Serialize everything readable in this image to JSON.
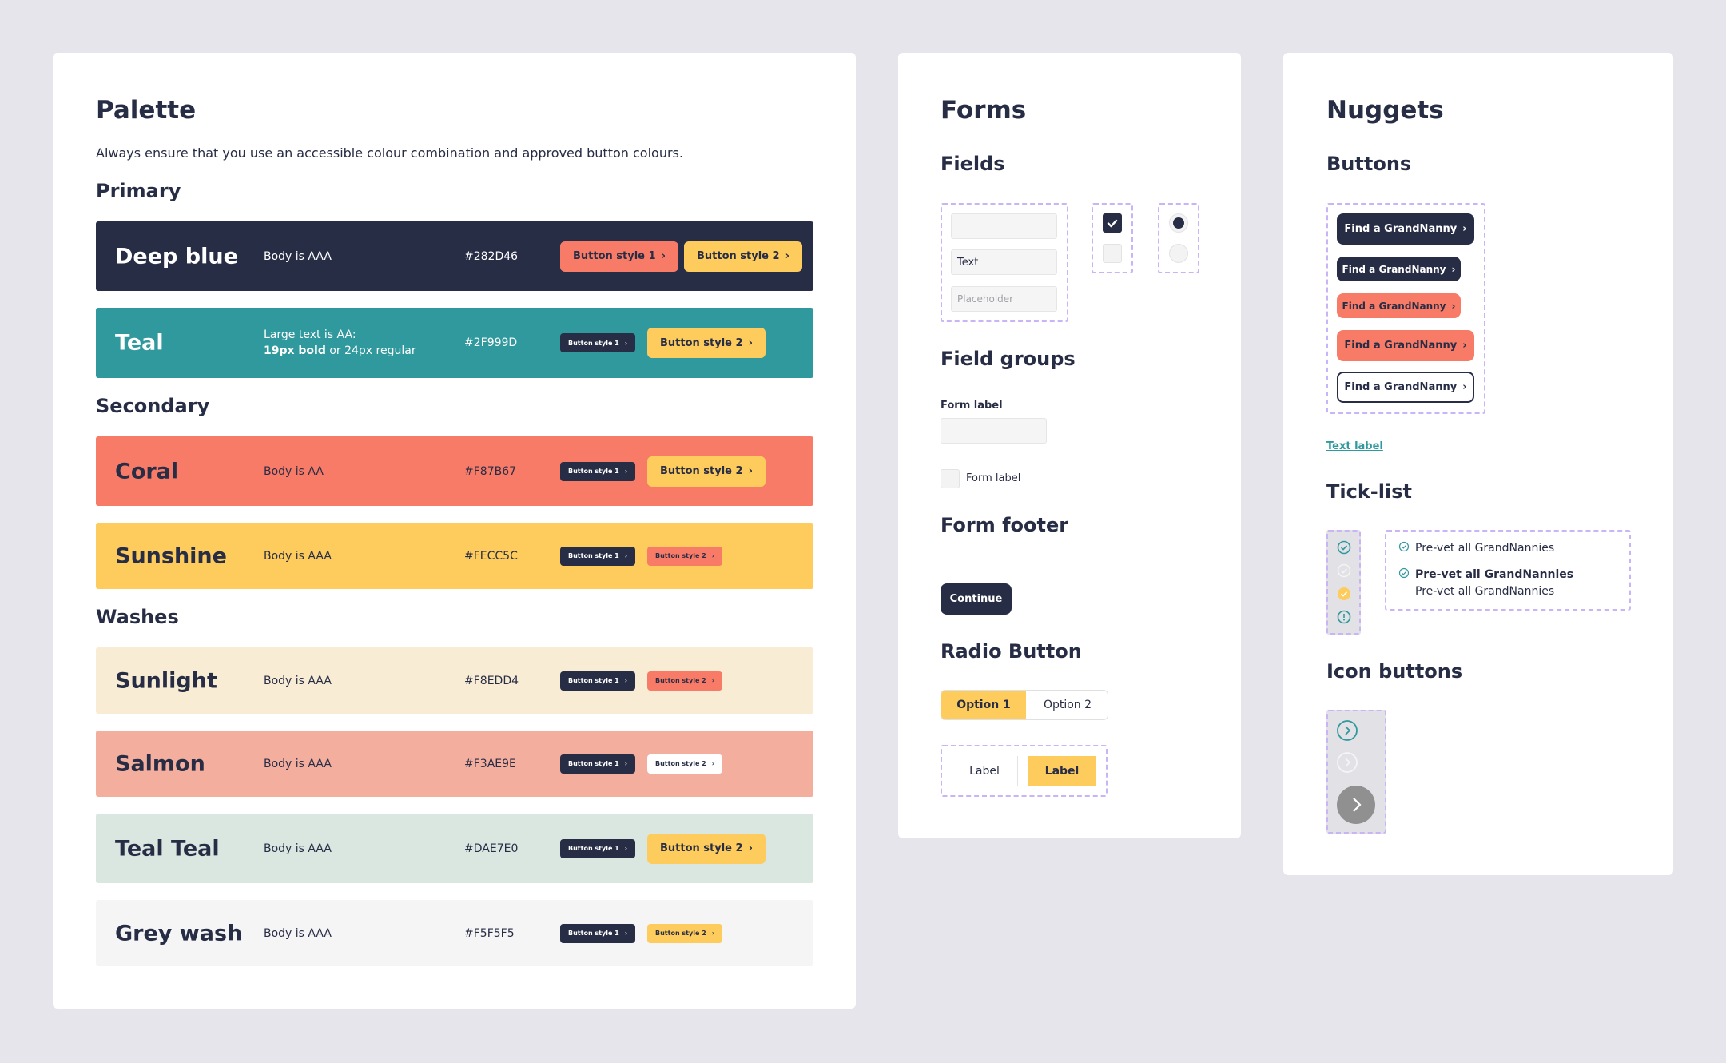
{
  "palette": {
    "title": "Palette",
    "description": "Always ensure that you use an accessible colour combination and approved button colours.",
    "sections": {
      "primary": "Primary",
      "secondary": "Secondary",
      "washes": "Washes"
    },
    "rows": [
      {
        "name": "Deep blue",
        "body": "Body is AAA",
        "hex": "#282D46",
        "bg": "#282D46",
        "btn1": "Button style 1",
        "btn2": "Button style 2"
      },
      {
        "name": "Teal",
        "body_line1": "Large text is AA:",
        "body_bold": "19px bold",
        "body_rest": " or 24px regular",
        "hex": "#2F999D",
        "bg": "#2F999D",
        "btn1": "Button style 1",
        "btn2": "Button style 2"
      },
      {
        "name": "Coral",
        "body": "Body is AA",
        "hex": "#F87B67",
        "bg": "#F87B67",
        "btn1": "Button style 1",
        "btn2": "Button style 2"
      },
      {
        "name": "Sunshine",
        "body": "Body is AAA",
        "hex": "#FECC5C",
        "bg": "#FECC5C",
        "btn1": "Button style 1",
        "btn2": "Button style 2"
      },
      {
        "name": "Sunlight",
        "body": "Body is AAA",
        "hex": "#F8EDD4",
        "bg": "#F8EDD4",
        "btn1": "Button style 1",
        "btn2": "Button style 2"
      },
      {
        "name": "Salmon",
        "body": "Body is AAA",
        "hex": "#F3AE9E",
        "bg": "#F3AE9E",
        "btn1": "Button style 1",
        "btn2": "Button style 2"
      },
      {
        "name": "Teal Teal",
        "body": "Body is AAA",
        "hex": "#DAE7E0",
        "bg": "#DAE7E0",
        "btn1": "Button style 1",
        "btn2": "Button style 2"
      },
      {
        "name": "Grey wash",
        "body": "Body is AAA",
        "hex": "#F5F5F5",
        "bg": "#F5F5F5",
        "btn1": "Button style 1",
        "btn2": "Button style 2"
      }
    ]
  },
  "forms": {
    "title": "Forms",
    "fields_title": "Fields",
    "field_text": "Text",
    "field_placeholder": "Placeholder",
    "field_groups_title": "Field groups",
    "form_label": "Form label",
    "checkbox_label": "Form label",
    "form_footer_title": "Form footer",
    "continue_label": "Continue",
    "radio_title": "Radio Button",
    "option1": "Option 1",
    "option2": "Option 2",
    "toggle_label_off": "Label",
    "toggle_label_on": "Label"
  },
  "nuggets": {
    "title": "Nuggets",
    "buttons_title": "Buttons",
    "button_label": "Find a GrandNanny",
    "text_label": "Text label",
    "ticklist_title": "Tick-list",
    "tick_item1": "Pre-vet all GrandNannies",
    "tick_item2_bold": "Pre-vet all GrandNannies",
    "tick_item2_sub": "Pre-vet all GrandNannies",
    "icon_buttons_title": "Icon buttons"
  },
  "colors": {
    "deep_blue": "#282D46",
    "teal": "#2F999D",
    "coral": "#F87B67",
    "sunshine": "#FECC5C",
    "dash": "#C9B5F5"
  }
}
